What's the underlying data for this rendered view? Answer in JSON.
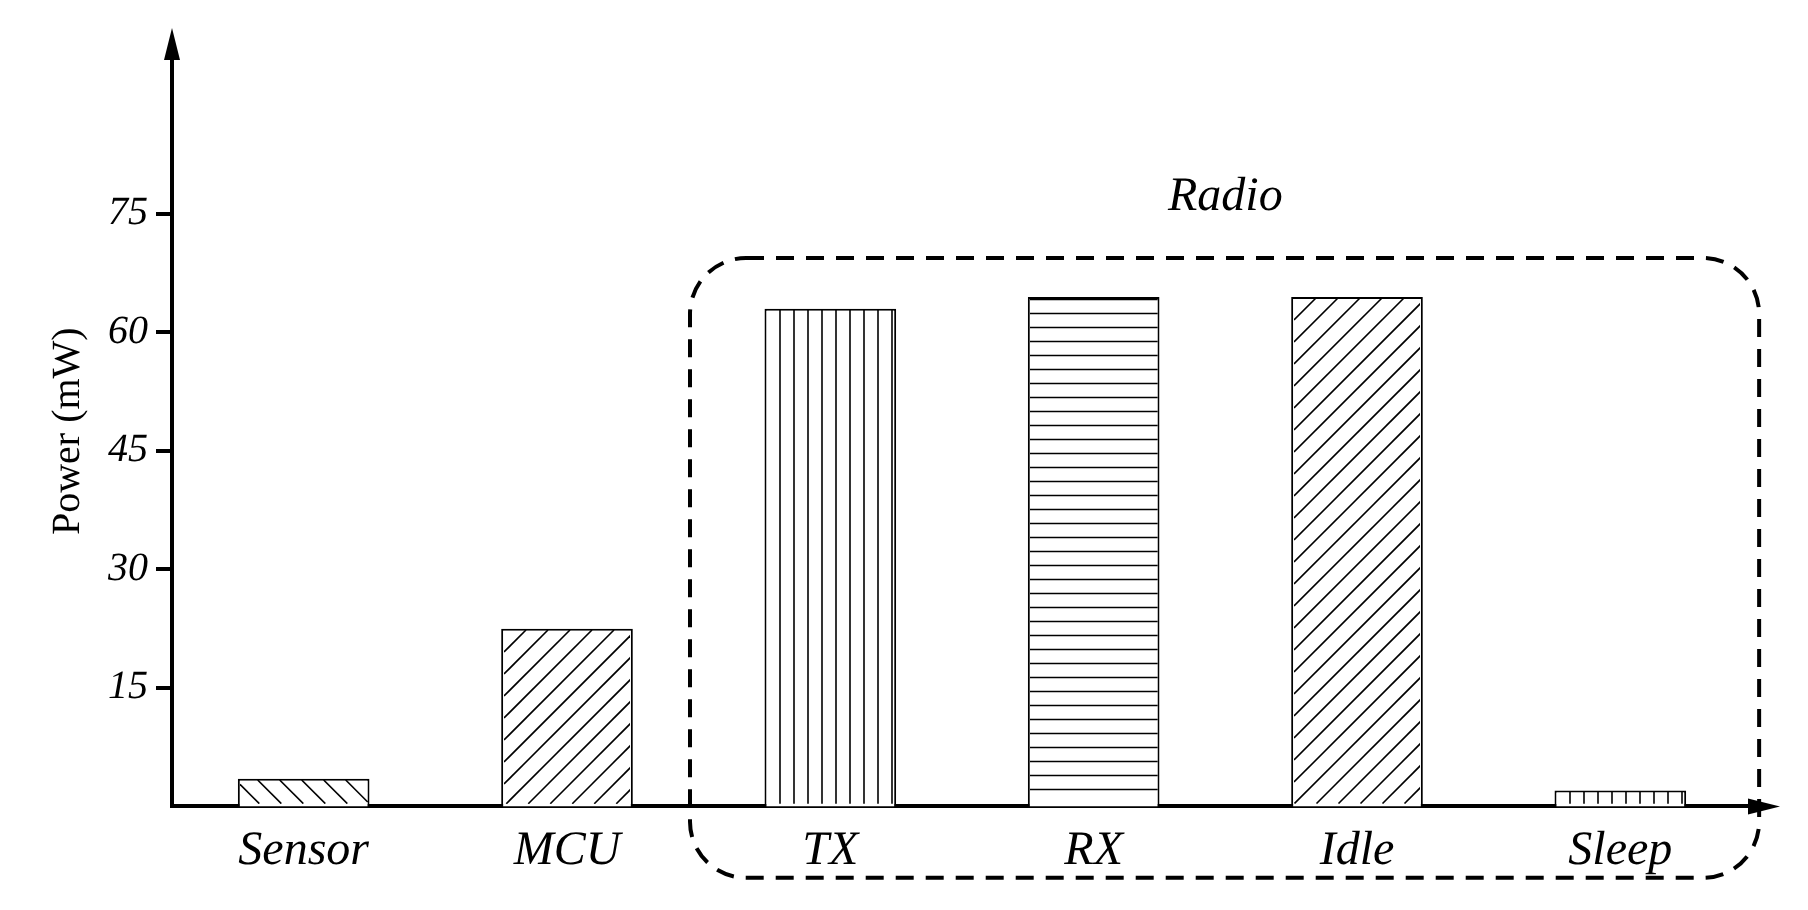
{
  "chart_data": {
    "type": "bar",
    "ylabel": "Power (mW)",
    "categories": [
      "Sensor",
      "MCU",
      "TX",
      "RX",
      "Idle",
      "Sleep"
    ],
    "values": [
      3.5,
      22.5,
      63,
      64.5,
      64.5,
      2
    ],
    "color": "#ffffff",
    "ylim": [
      0,
      95
    ],
    "yticks": [
      15,
      30,
      45,
      60,
      75
    ],
    "grid": false,
    "legend": false,
    "annotations": [
      "Radio"
    ]
  }
}
